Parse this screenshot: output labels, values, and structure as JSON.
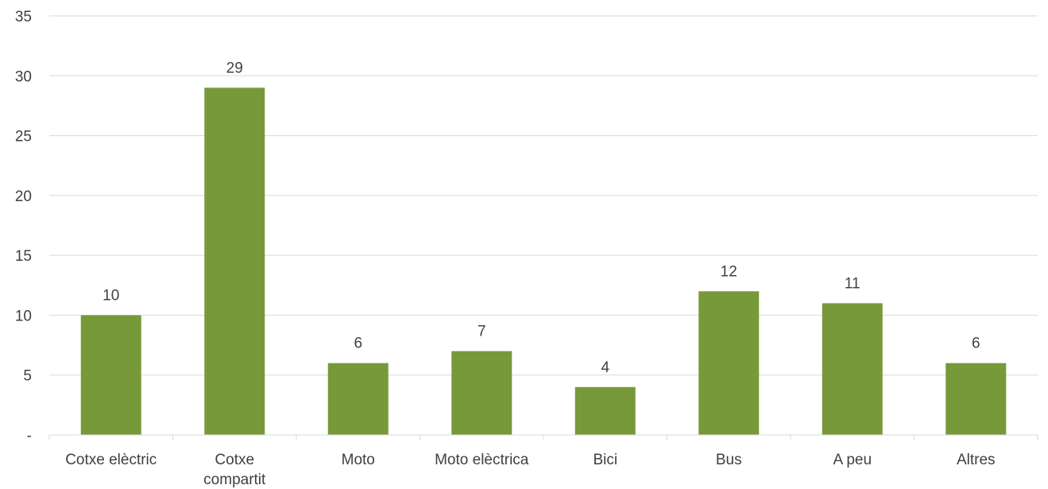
{
  "chart_data": {
    "type": "bar",
    "title": "",
    "xlabel": "",
    "ylabel": "",
    "categories": [
      "Cotxe elèctric",
      "Cotxe compartit",
      "Moto",
      "Moto elèctrica",
      "Bici",
      "Bus",
      "A peu",
      "Altres"
    ],
    "category_lines": [
      [
        "Cotxe elèctric"
      ],
      [
        "Cotxe",
        "compartit"
      ],
      [
        "Moto"
      ],
      [
        "Moto elèctrica"
      ],
      [
        "Bici"
      ],
      [
        "Bus"
      ],
      [
        "A peu"
      ],
      [
        "Altres"
      ]
    ],
    "values": [
      10,
      29,
      6,
      7,
      4,
      12,
      11,
      6
    ],
    "data_labels": [
      "10",
      "29",
      "6",
      "7",
      "4",
      "12",
      "11",
      "6"
    ],
    "ylim": [
      0,
      35
    ],
    "yticks": [
      0,
      5,
      10,
      15,
      20,
      25,
      30,
      35
    ],
    "ytick_labels": [
      "-",
      "5",
      "10",
      "15",
      "20",
      "25",
      "30",
      "35"
    ],
    "grid": true,
    "legend": "none",
    "bar_color": "#77993a",
    "grid_color": "#d9d9d9",
    "text_color": "#404040"
  }
}
